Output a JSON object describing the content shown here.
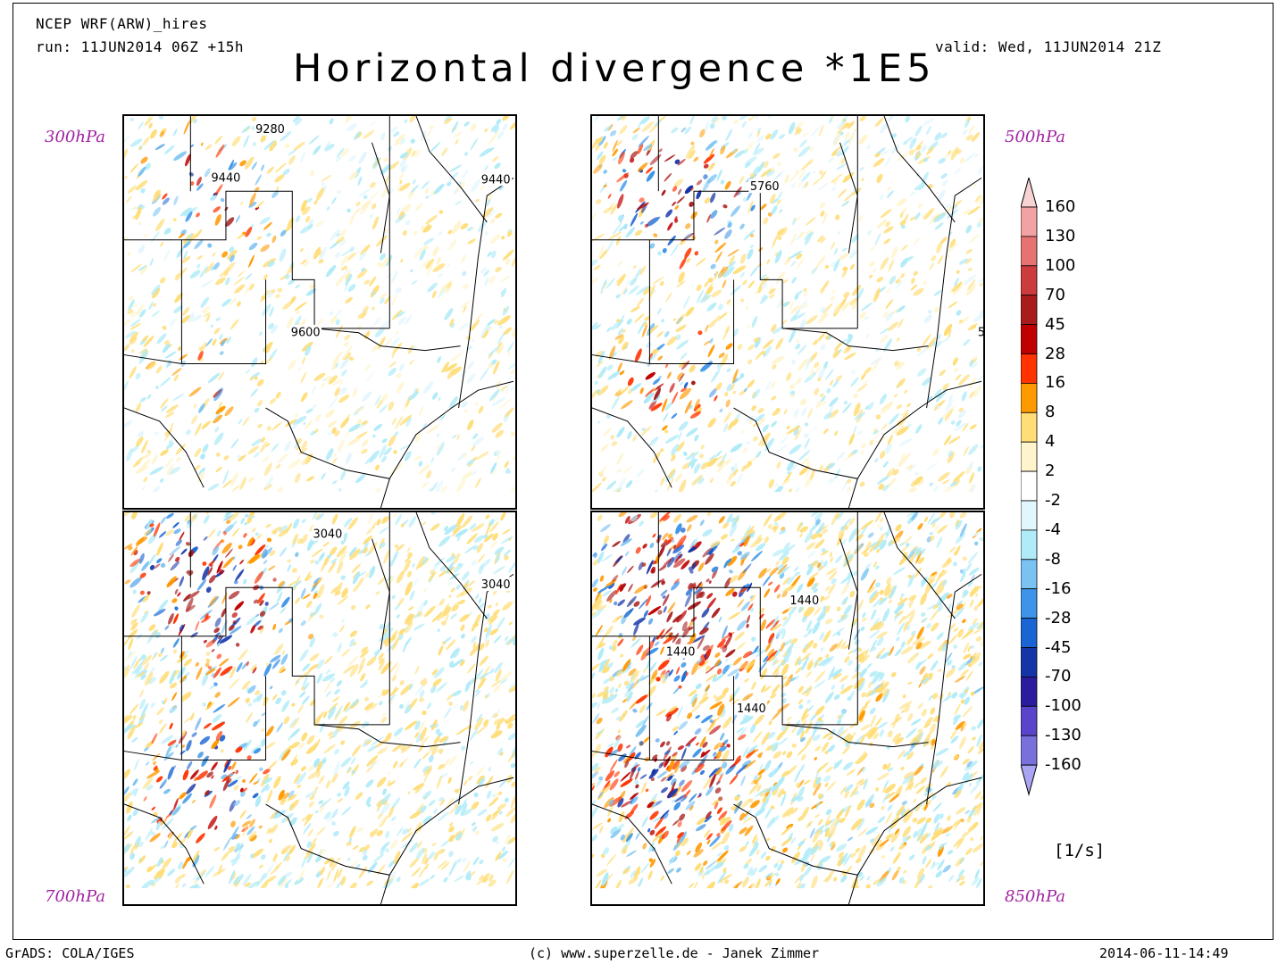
{
  "header": {
    "model": "NCEP WRF(ARW)_hires",
    "run": "run: 11JUN2014 06Z +15h",
    "valid": "valid: Wed, 11JUN2014 21Z",
    "title": "Horizontal divergence *1E5"
  },
  "panels": [
    {
      "id": "p300",
      "level": "300hPa",
      "contours": [
        "9280",
        "9440",
        "9440",
        "9600"
      ]
    },
    {
      "id": "p500",
      "level": "500hPa",
      "contours": [
        "5760",
        "5"
      ]
    },
    {
      "id": "p700",
      "level": "700hPa",
      "contours": [
        "3040",
        "3040"
      ]
    },
    {
      "id": "p850",
      "level": "850hPa",
      "contours": [
        "1440",
        "1440",
        "1440"
      ]
    }
  ],
  "colorbar": {
    "labels": [
      "160",
      "130",
      "100",
      "70",
      "45",
      "28",
      "16",
      "8",
      "4",
      "2",
      "-2",
      "-4",
      "-8",
      "-16",
      "-28",
      "-45",
      "-70",
      "-100",
      "-130",
      "-160"
    ],
    "colors": [
      "#f7d3d3",
      "#f2a2a2",
      "#e67272",
      "#cd3c3c",
      "#a81c1c",
      "#c00000",
      "#ff3300",
      "#ff9900",
      "#ffdd77",
      "#fff4cc",
      "#ffffff",
      "#e2f6fe",
      "#b0ebf8",
      "#7ac2f2",
      "#3d94e8",
      "#1a64d4",
      "#1434a8",
      "#2a1c9c",
      "#5a44cc",
      "#7a70dc",
      "#a9a4f4"
    ],
    "unit": "[1/s]"
  },
  "footer": {
    "left": "GrADS: COLA/IGES",
    "center": "(c) www.superzelle.de - Janek Zimmer",
    "right": "2014-06-11-14:49"
  }
}
